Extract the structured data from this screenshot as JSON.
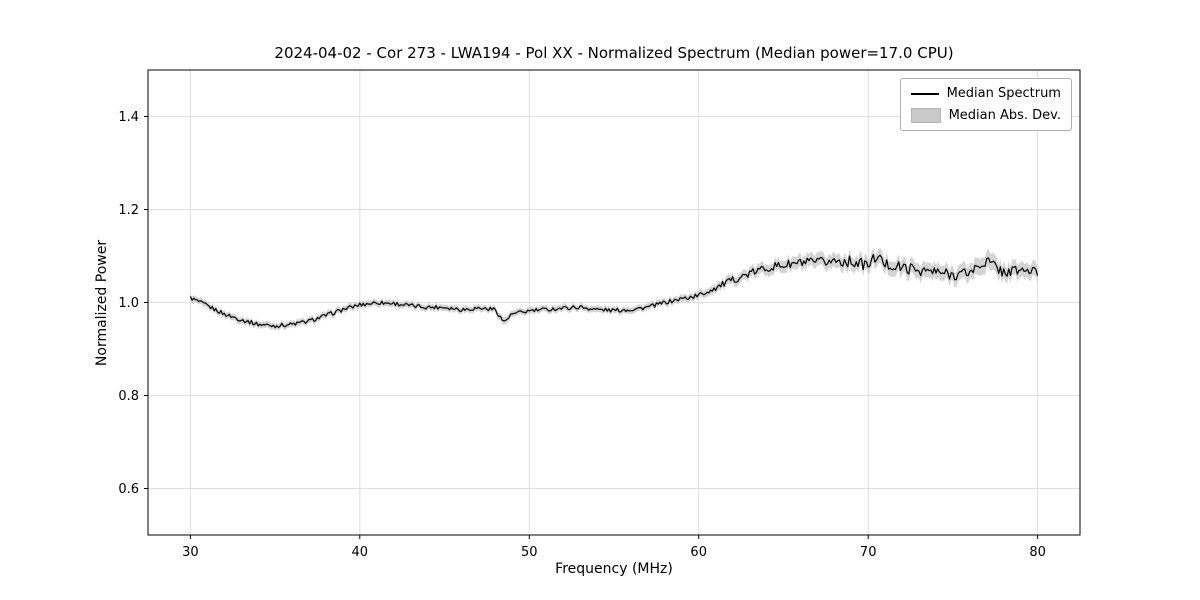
{
  "chart_data": {
    "type": "line",
    "title": "2024-04-02 - Cor 273 - LWA194 - Pol XX - Normalized Spectrum (Median power=17.0 CPU)",
    "xlabel": "Frequency (MHz)",
    "ylabel": "Normalized Power",
    "xlim": [
      27.5,
      82.5
    ],
    "ylim": [
      0.5,
      1.5
    ],
    "xticks": [
      30,
      40,
      50,
      60,
      70,
      80
    ],
    "yticks": [
      0.6,
      0.8,
      1.0,
      1.2,
      1.4
    ],
    "grid": true,
    "legend": {
      "position": "upper right",
      "entries": [
        {
          "label": "Median Spectrum",
          "type": "line",
          "color": "#000000"
        },
        {
          "label": "Median Abs. Dev.",
          "type": "patch",
          "color": "#c9c9c9"
        }
      ]
    },
    "colors": {
      "line": "#000000",
      "band": "#bdbdbd",
      "grid": "#dedede",
      "axes": "#000000",
      "background": "#ffffff"
    },
    "series": [
      {
        "name": "Median Spectrum",
        "x": [
          30,
          31,
          32,
          33,
          34,
          35,
          36,
          37,
          38,
          39,
          40,
          41,
          42,
          43,
          44,
          45,
          46,
          47,
          48,
          48.5,
          49,
          50,
          51,
          52,
          53,
          54,
          55,
          56,
          57,
          58,
          59,
          60,
          61,
          62,
          63,
          64,
          65,
          66,
          67,
          68,
          69,
          70,
          70.5,
          71,
          72,
          73,
          74,
          75,
          76,
          77,
          78,
          79,
          80
        ],
        "y": [
          1.01,
          0.993,
          0.975,
          0.963,
          0.953,
          0.95,
          0.953,
          0.96,
          0.972,
          0.985,
          0.995,
          1.0,
          0.998,
          0.993,
          0.99,
          0.99,
          0.985,
          0.988,
          0.985,
          0.958,
          0.975,
          0.982,
          0.985,
          0.988,
          0.99,
          0.985,
          0.983,
          0.985,
          0.99,
          1.0,
          1.008,
          1.015,
          1.032,
          1.048,
          1.062,
          1.075,
          1.08,
          1.085,
          1.085,
          1.09,
          1.088,
          1.08,
          1.1,
          1.082,
          1.075,
          1.07,
          1.065,
          1.06,
          1.065,
          1.09,
          1.065,
          1.07,
          1.065
        ]
      },
      {
        "name": "Median Abs. Dev.",
        "x": [
          30,
          31,
          32,
          33,
          34,
          35,
          36,
          37,
          38,
          39,
          40,
          41,
          42,
          43,
          44,
          45,
          46,
          47,
          48,
          48.5,
          49,
          50,
          51,
          52,
          53,
          54,
          55,
          56,
          57,
          58,
          59,
          60,
          61,
          62,
          63,
          64,
          65,
          66,
          67,
          68,
          69,
          70,
          70.5,
          71,
          72,
          73,
          74,
          75,
          76,
          77,
          78,
          79,
          80
        ],
        "mad": [
          0.007,
          0.007,
          0.007,
          0.007,
          0.007,
          0.007,
          0.007,
          0.007,
          0.007,
          0.007,
          0.007,
          0.007,
          0.007,
          0.007,
          0.007,
          0.007,
          0.007,
          0.007,
          0.007,
          0.008,
          0.007,
          0.007,
          0.007,
          0.007,
          0.007,
          0.007,
          0.007,
          0.007,
          0.007,
          0.007,
          0.008,
          0.008,
          0.009,
          0.01,
          0.011,
          0.012,
          0.013,
          0.014,
          0.014,
          0.015,
          0.015,
          0.015,
          0.016,
          0.016,
          0.016,
          0.016,
          0.016,
          0.016,
          0.017,
          0.019,
          0.017,
          0.016,
          0.016
        ]
      }
    ],
    "noise": {
      "amplitude_low": 0.0045,
      "amplitude_high": 0.012,
      "ramp_start": 58,
      "ramp_end": 68
    }
  }
}
